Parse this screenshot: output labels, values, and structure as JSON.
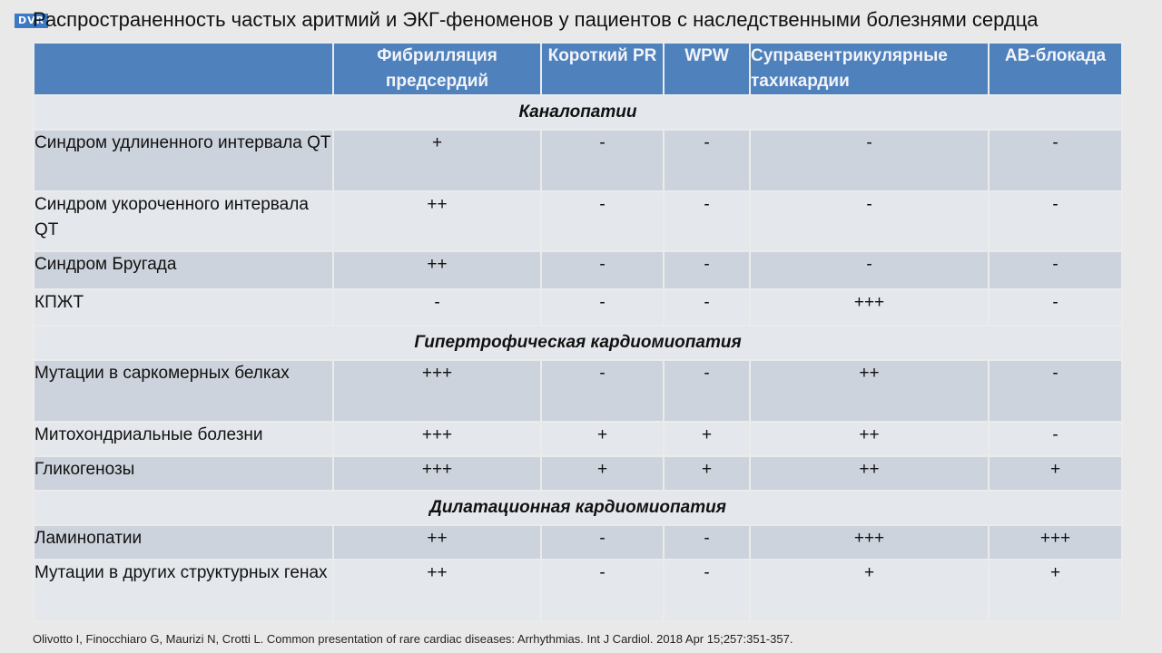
{
  "badge": "DVR",
  "title": "Распространенность частых аритмий и ЭКГ-феноменов у пациентов с наследственными болезнями сердца",
  "table": {
    "headers": [
      "",
      "Фибрилляция предсердий",
      "Короткий PR",
      "WPW",
      "Суправентрикулярные тахикардии",
      "АВ-блокада"
    ],
    "sections": [
      {
        "name": "Каналопатии",
        "rows": [
          {
            "label": "Синдром удлиненного интервала QT",
            "values": [
              "+",
              "-",
              "-",
              "-",
              "-"
            ]
          },
          {
            "label": "Синдром укороченного интервала QT",
            "values": [
              "++",
              "-",
              "-",
              "-",
              "-"
            ]
          },
          {
            "label": "Синдром Бругада",
            "values": [
              "++",
              "-",
              "-",
              "-",
              "-"
            ]
          },
          {
            "label": "КПЖТ",
            "values": [
              "-",
              "-",
              "-",
              "+++",
              "-"
            ]
          }
        ]
      },
      {
        "name": "Гипертрофическая кардиомиопатия",
        "rows": [
          {
            "label": "Мутации в саркомерных белках",
            "values": [
              "+++",
              "-",
              "-",
              "++",
              "-"
            ]
          },
          {
            "label": "Митохондриальные болезни",
            "values": [
              "+++",
              "+",
              "+",
              "++",
              "-"
            ]
          },
          {
            "label": "Гликогенозы",
            "values": [
              "+++",
              "+",
              "+",
              "++",
              "+"
            ]
          }
        ]
      },
      {
        "name": "Дилатационная кардиомиопатия",
        "rows": [
          {
            "label": "Ламинопатии",
            "values": [
              "++",
              "-",
              "-",
              "+++",
              "+++"
            ]
          },
          {
            "label": "Мутации в других структурных генах",
            "values": [
              "++",
              "-",
              "-",
              "+",
              "+"
            ]
          }
        ]
      }
    ]
  },
  "footer": "Olivotto I, Finocchiaro G, Maurizi N, Crotti L. Common presentation of rare cardiac diseases: Arrhythmias. Int J Cardiol. 2018 Apr 15;257:351-357.",
  "colors": {
    "header_bg": "#4f81bd",
    "row_dark": "#cdd3dc",
    "row_light": "#e4e7ec",
    "page_bg": "#e9e9e9"
  }
}
